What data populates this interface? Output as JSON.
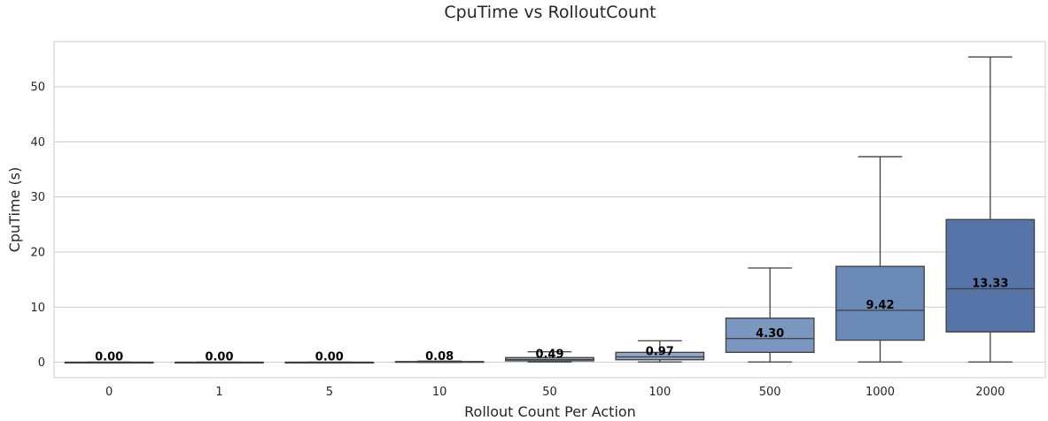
{
  "chart_data": {
    "type": "box",
    "title": "CpuTime vs RolloutCount",
    "xlabel": "Rollout Count Per Action",
    "ylabel": "CpuTime (s)",
    "ylim": [
      -2.8,
      58.2
    ],
    "yticks": [
      0,
      10,
      20,
      30,
      40,
      50
    ],
    "grid": true,
    "categories": [
      "0",
      "1",
      "5",
      "10",
      "50",
      "100",
      "500",
      "1000",
      "2000"
    ],
    "boxes": [
      {
        "whisker_low": 0.0,
        "q1": 0.0,
        "median": 0.0,
        "q3": 0.0,
        "whisker_high": 0.0,
        "label": "0.00",
        "color": "#c5d3e6"
      },
      {
        "whisker_low": 0.0,
        "q1": 0.0,
        "median": 0.0,
        "q3": 0.0,
        "whisker_high": 0.0,
        "label": "0.00",
        "color": "#bccbe1"
      },
      {
        "whisker_low": 0.0,
        "q1": 0.0,
        "median": 0.0,
        "q3": 0.0,
        "whisker_high": 0.0,
        "label": "0.00",
        "color": "#b2c3dc"
      },
      {
        "whisker_low": 0.0,
        "q1": 0.04,
        "median": 0.08,
        "q3": 0.12,
        "whisker_high": 0.2,
        "label": "0.08",
        "color": "#a7bbd6"
      },
      {
        "whisker_low": 0.05,
        "q1": 0.25,
        "median": 0.49,
        "q3": 0.85,
        "whisker_high": 1.9,
        "label": "0.49",
        "color": "#9ab0cf"
      },
      {
        "whisker_low": 0.05,
        "q1": 0.45,
        "median": 0.97,
        "q3": 1.8,
        "whisker_high": 3.9,
        "label": "0.97",
        "color": "#8ca5c8"
      },
      {
        "whisker_low": 0.05,
        "q1": 1.8,
        "median": 4.3,
        "q3": 8.0,
        "whisker_high": 17.1,
        "label": "4.30",
        "color": "#7b97bf"
      },
      {
        "whisker_low": 0.05,
        "q1": 4.0,
        "median": 9.42,
        "q3": 17.4,
        "whisker_high": 37.3,
        "label": "9.42",
        "color": "#6a89b6"
      },
      {
        "whisker_low": 0.05,
        "q1": 5.5,
        "median": 13.33,
        "q3": 25.9,
        "whisker_high": 55.4,
        "label": "13.33",
        "color": "#5674a8"
      }
    ]
  }
}
